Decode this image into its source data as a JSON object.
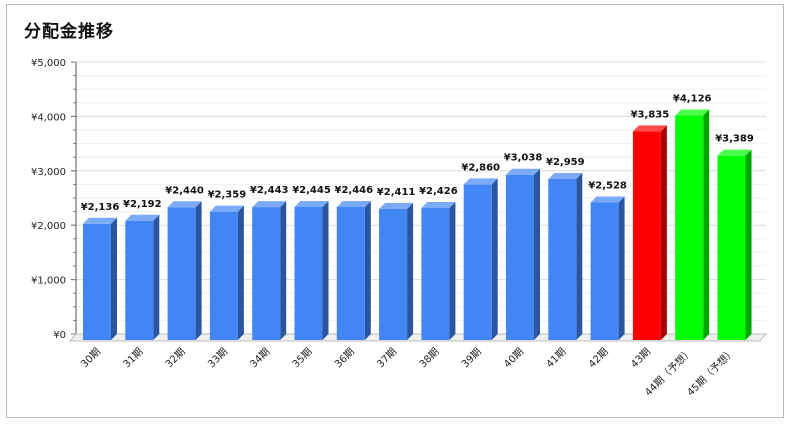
{
  "chart_data": {
    "type": "bar",
    "title": "分配金推移",
    "categories": [
      "30期",
      "31期",
      "32期",
      "33期",
      "34期",
      "35期",
      "36期",
      "37期",
      "38期",
      "39期",
      "40期",
      "41期",
      "42期",
      "43期",
      "44期（予想）",
      "45期（予想）"
    ],
    "values": [
      2136,
      2192,
      2440,
      2359,
      2443,
      2445,
      2446,
      2411,
      2426,
      2860,
      3038,
      2959,
      2528,
      3835,
      4126,
      3389
    ],
    "value_labels": [
      "¥2,136",
      "¥2,192",
      "¥2,440",
      "¥2,359",
      "¥2,443",
      "¥2,445",
      "¥2,446",
      "¥2,411",
      "¥2,426",
      "¥2,860",
      "¥3,038",
      "¥2,959",
      "¥2,528",
      "¥3,835",
      "¥4,126",
      "¥3,389"
    ],
    "ylim": [
      0,
      5000
    ],
    "yticks": [
      0,
      1000,
      2000,
      3000,
      4000,
      5000
    ],
    "ytick_labels": [
      "¥0",
      "¥1,000",
      "¥2,000",
      "¥3,000",
      "¥4,000",
      "¥5,000"
    ],
    "grid": true,
    "legend": "none",
    "colors": {
      "default": "#4285f4",
      "43期": "#ff0000",
      "forecast": "#00ff00"
    },
    "bar_colors": [
      "#4285f4",
      "#4285f4",
      "#4285f4",
      "#4285f4",
      "#4285f4",
      "#4285f4",
      "#4285f4",
      "#4285f4",
      "#4285f4",
      "#4285f4",
      "#4285f4",
      "#4285f4",
      "#4285f4",
      "#ff0000",
      "#00ff00",
      "#00ff00"
    ]
  }
}
